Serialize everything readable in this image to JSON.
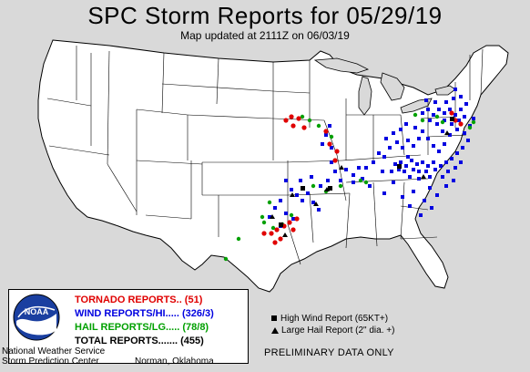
{
  "title": "SPC Storm Reports for 05/29/19",
  "subtitle": "Map updated at 2111Z on 06/03/19",
  "legend": {
    "tornado": "TORNADO REPORTS.. (51)",
    "wind": "WIND REPORTS/HI..... (326/3)",
    "hail": "HAIL REPORTS/LG..... (78/8)",
    "total": "TOTAL REPORTS....... (455)"
  },
  "logo_text": "NOAA",
  "organization": {
    "line1": "National Weather Service",
    "line2": "Storm Prediction Center",
    "city": "Norman, Oklahoma"
  },
  "key": {
    "high_wind": "High Wind Report (65KT+)",
    "large_hail": "Large Hail Report (2\" dia. +)"
  },
  "preliminary": "PRELIMINARY DATA ONLY",
  "colors": {
    "tornado": "#e00000",
    "wind": "#0000e0",
    "hail": "#00a000",
    "land": "#ffffff",
    "water": "#d9d9d9"
  },
  "counts": {
    "tornado": 51,
    "wind": 326,
    "wind_high": 3,
    "hail": 78,
    "hail_large": 8,
    "total": 455
  }
}
